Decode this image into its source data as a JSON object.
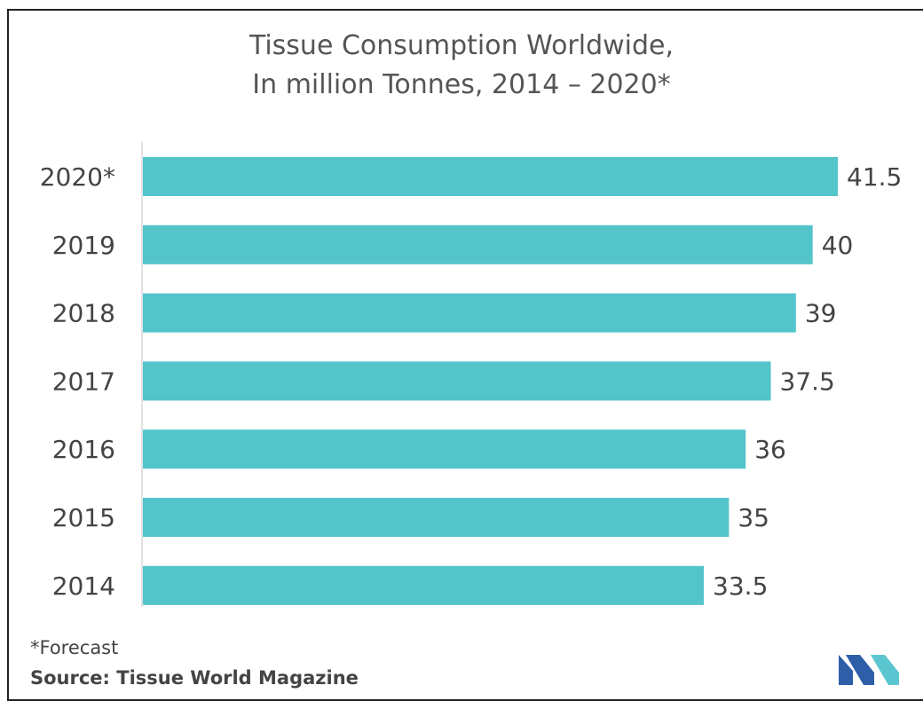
{
  "chart_data": {
    "type": "bar",
    "orientation": "horizontal",
    "title_line1": "Tissue Consumption Worldwide,",
    "title_line2": "In million Tonnes, 2014 – 2020*",
    "categories": [
      "2020*",
      "2019",
      "2018",
      "2017",
      "2016",
      "2015",
      "2014"
    ],
    "values": [
      41.5,
      40,
      39,
      37.5,
      36,
      35,
      33.5
    ],
    "value_labels": [
      "41.5",
      "40",
      "39",
      "37.5",
      "36",
      "35",
      "33.5"
    ],
    "xlim": [
      0,
      41.5
    ],
    "grid": false,
    "bar_color": "#54c4cb"
  },
  "footnote": "*Forecast",
  "source": "Source: Tissue World Magazine",
  "logo_icon": "mordor-intelligence-logo-icon",
  "colors": {
    "logo_left": "#2e5ea8",
    "logo_right": "#5bc6cf"
  }
}
